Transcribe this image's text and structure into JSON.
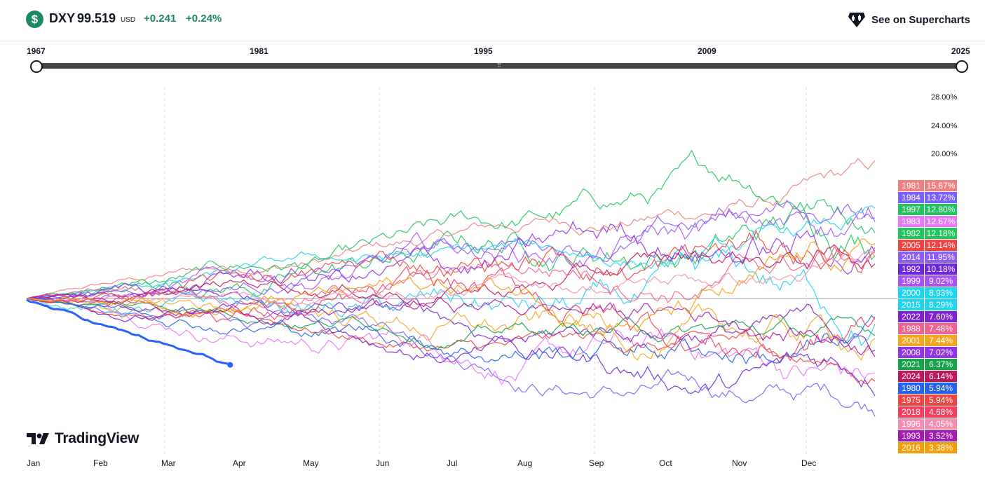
{
  "header": {
    "symbol_icon": "$",
    "symbol": "DXY",
    "price": "99.519",
    "currency": "USD",
    "change": "+0.241",
    "change_pct": "+0.24%",
    "supercharts_label": "See on Supercharts",
    "supercharts_icon": "tradingview-gem-icon"
  },
  "range": {
    "years": [
      "1967",
      "1981",
      "1995",
      "2009",
      "2025"
    ],
    "start": "1967",
    "end": "2025"
  },
  "brand": "TradingView",
  "chart_data": {
    "type": "line",
    "title": "",
    "x_months": [
      "Jan",
      "Feb",
      "Mar",
      "Apr",
      "May",
      "Jun",
      "Jul",
      "Aug",
      "Sep",
      "Oct",
      "Nov",
      "Dec"
    ],
    "y_ticks": [
      "28.00%",
      "24.00%",
      "20.00%"
    ],
    "ylabel": "",
    "grid": "vertical quarterly dashed lines",
    "legend_position": "right",
    "current_year_highlight": "2025",
    "series": [
      {
        "name": "1981",
        "value": "15.67%",
        "color": "#f08080",
        "final": 15.67
      },
      {
        "name": "1984",
        "value": "13.72%",
        "color": "#7b61ff",
        "final": 13.72
      },
      {
        "name": "1997",
        "value": "12.80%",
        "color": "#22c55e",
        "final": 12.8
      },
      {
        "name": "1983",
        "value": "12.67%",
        "color": "#e879f9",
        "final": 12.67
      },
      {
        "name": "1982",
        "value": "12.18%",
        "color": "#22c55e",
        "final": 12.18
      },
      {
        "name": "2005",
        "value": "12.14%",
        "color": "#ef4444",
        "final": 12.14
      },
      {
        "name": "2014",
        "value": "11.95%",
        "color": "#8b5cf6",
        "final": 11.95
      },
      {
        "name": "1992",
        "value": "10.18%",
        "color": "#6d28d9",
        "final": 10.18
      },
      {
        "name": "1999",
        "value": "9.02%",
        "color": "#a855f7",
        "final": 9.02
      },
      {
        "name": "2000",
        "value": "8.93%",
        "color": "#22d3ee",
        "final": 8.93
      },
      {
        "name": "2015",
        "value": "8.29%",
        "color": "#22d3ee",
        "final": 8.29
      },
      {
        "name": "2022",
        "value": "7.60%",
        "color": "#7e22ce",
        "final": 7.6
      },
      {
        "name": "1988",
        "value": "7.48%",
        "color": "#f06292",
        "final": 7.48
      },
      {
        "name": "2001",
        "value": "7.44%",
        "color": "#f5a623",
        "final": 7.44
      },
      {
        "name": "2008",
        "value": "7.02%",
        "color": "#9333ea",
        "final": 7.02
      },
      {
        "name": "2021",
        "value": "6.37%",
        "color": "#16a34a",
        "final": 6.37
      },
      {
        "name": "2024",
        "value": "6.14%",
        "color": "#be185d",
        "final": 6.14
      },
      {
        "name": "1980",
        "value": "5.94%",
        "color": "#2563eb",
        "final": 5.94
      },
      {
        "name": "1975",
        "value": "5.94%",
        "color": "#ef4444",
        "final": 5.94
      },
      {
        "name": "2018",
        "value": "4.68%",
        "color": "#f43f5e",
        "final": 4.68
      },
      {
        "name": "1996",
        "value": "4.05%",
        "color": "#f48fb1",
        "final": 4.05
      },
      {
        "name": "1993",
        "value": "3.52%",
        "color": "#a21caf",
        "final": 3.52
      },
      {
        "name": "2016",
        "value": "3.38%",
        "color": "#f59e0b",
        "final": 3.38
      }
    ]
  }
}
